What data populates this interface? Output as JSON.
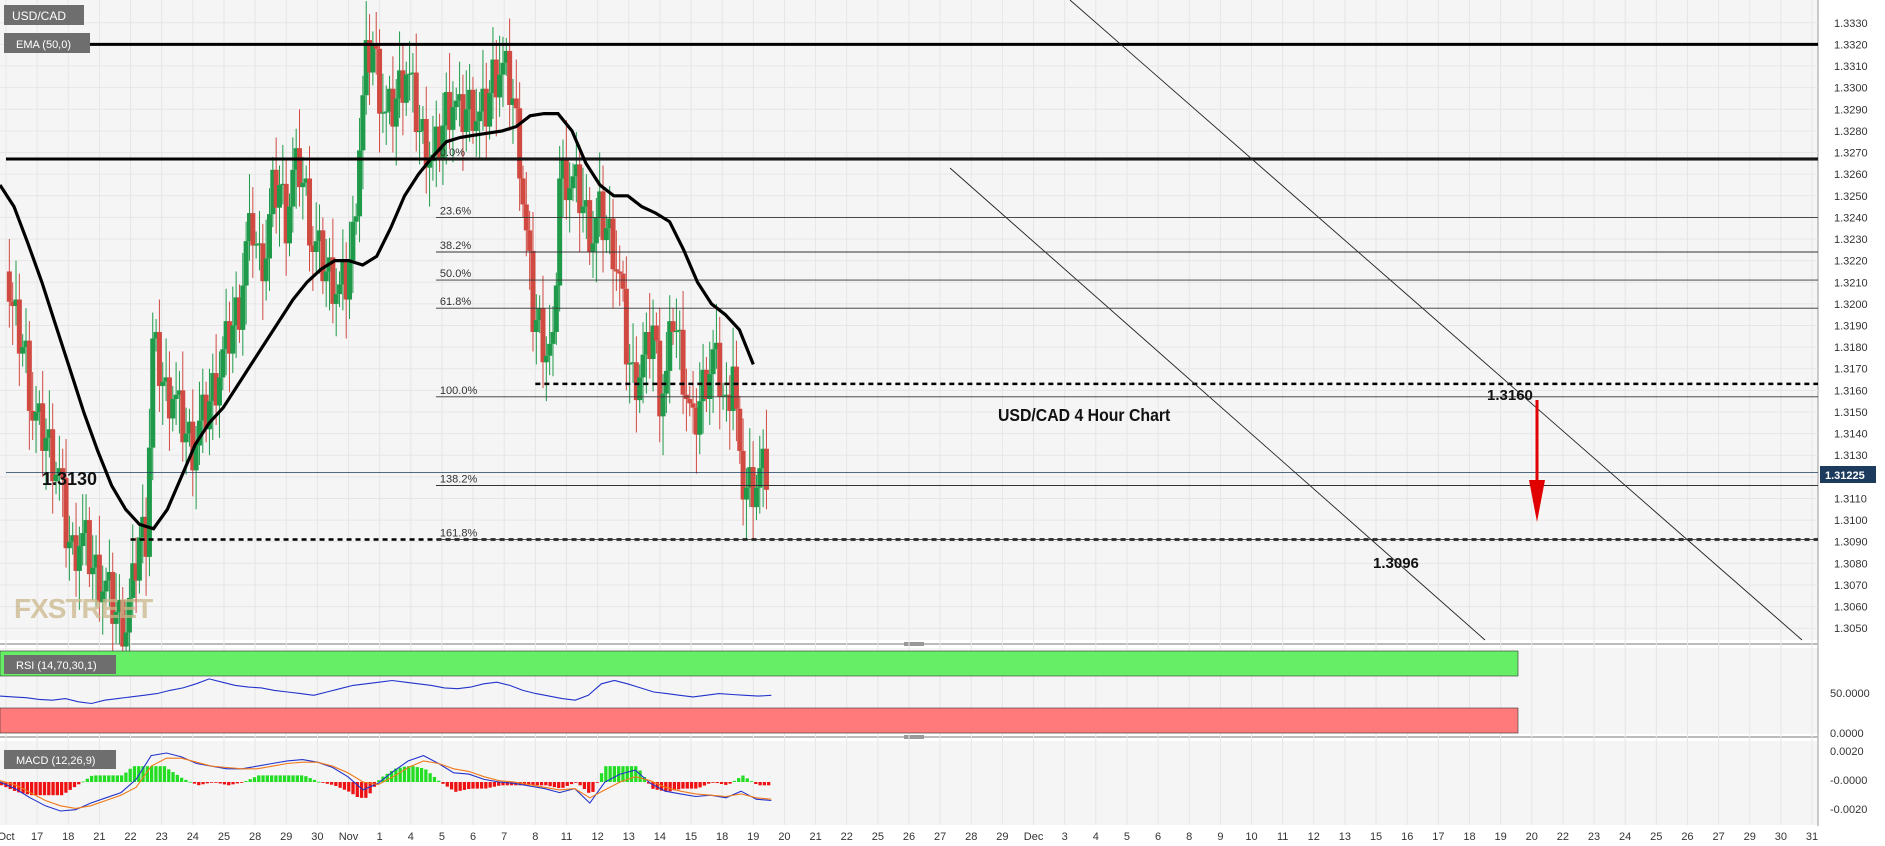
{
  "app": {
    "symbol": "USD/CAD",
    "watermark": "FXSTREET",
    "colors": {
      "up": "#1e9a4a",
      "down": "#d04a42",
      "ema": "#000000",
      "rsi": "#2233cc",
      "macd_line": "#2233cc",
      "signal_line": "#f07a1a",
      "hist_up": "#22dd22",
      "hist_down": "#ee1111",
      "arrow": "#e00000",
      "price_tag": "#1d3b5c"
    }
  },
  "chart_data": [
    {
      "type": "candlestick",
      "panel": "price",
      "symbol": "USD/CAD",
      "title": "USD/CAD  4 Hour Chart",
      "indicator_label": "EMA (50,0)",
      "ylim": [
        1.3045,
        1.3335
      ],
      "y_ticks": [
        "1.3050",
        "1.3060",
        "1.3070",
        "1.3080",
        "1.3090",
        "1.3100",
        "1.3110",
        "1.3120",
        "1.3130",
        "1.3140",
        "1.3150",
        "1.3160",
        "1.3170",
        "1.3180",
        "1.3190",
        "1.3200",
        "1.3210",
        "1.3220",
        "1.3230",
        "1.3240",
        "1.3250",
        "1.3260",
        "1.3270",
        "1.3280",
        "1.3290",
        "1.3300",
        "1.3310",
        "1.3320",
        "1.3330"
      ],
      "x_ticks": [
        "Oct",
        "17",
        "18",
        "21",
        "22",
        "23",
        "24",
        "25",
        "28",
        "29",
        "30",
        "Nov",
        "1",
        "4",
        "5",
        "6",
        "7",
        "8",
        "11",
        "12",
        "13",
        "14",
        "15",
        "18",
        "19",
        "20",
        "21",
        "22",
        "25",
        "26",
        "27",
        "28",
        "29",
        "Dec",
        "3",
        "4",
        "5",
        "6",
        "8",
        "9",
        "10",
        "11",
        "12",
        "13",
        "15",
        "16",
        "17",
        "18",
        "19",
        "20",
        "22",
        "23",
        "24",
        "25",
        "26",
        "27",
        "29",
        "30",
        "31"
      ],
      "close_path": [
        1.3215,
        1.3195,
        1.3185,
        1.3175,
        1.315,
        1.3142,
        1.3138,
        1.313,
        1.312,
        1.3095,
        1.3085,
        1.3092,
        1.3088,
        1.3078,
        1.3074,
        1.3068,
        1.306,
        1.3055,
        1.3052,
        1.3068,
        1.3092,
        1.3095,
        1.318,
        1.317,
        1.3158,
        1.316,
        1.3148,
        1.314,
        1.3135,
        1.3142,
        1.315,
        1.316,
        1.317,
        1.318,
        1.319,
        1.32,
        1.3225,
        1.3235,
        1.322,
        1.3225,
        1.325,
        1.3255,
        1.324,
        1.3258,
        1.3262,
        1.325,
        1.3228,
        1.3222,
        1.3215,
        1.3212,
        1.3205,
        1.321,
        1.323,
        1.3275,
        1.331,
        1.332,
        1.33,
        1.3285,
        1.329,
        1.33,
        1.331,
        1.3295,
        1.328,
        1.3275,
        1.3265,
        1.3275,
        1.329,
        1.3295,
        1.3285,
        1.329,
        1.3292,
        1.3285,
        1.329,
        1.3305,
        1.331,
        1.3305,
        1.3295,
        1.327,
        1.323,
        1.3195,
        1.319,
        1.318,
        1.3175,
        1.3258,
        1.326,
        1.3255,
        1.325,
        1.324,
        1.3232,
        1.324,
        1.3235,
        1.3228,
        1.321,
        1.318,
        1.3165,
        1.317,
        1.3175,
        1.319,
        1.316,
        1.3165,
        1.3195,
        1.318,
        1.316,
        1.314,
        1.3155,
        1.3168,
        1.3175,
        1.3165,
        1.315,
        1.3175,
        1.312,
        1.3115,
        1.3118,
        1.312,
        1.3122
      ],
      "ema_path": [
        1.3255,
        1.3245,
        1.3228,
        1.321,
        1.319,
        1.317,
        1.315,
        1.3132,
        1.3116,
        1.3105,
        1.3098,
        1.3096,
        1.3105,
        1.312,
        1.3135,
        1.3145,
        1.3152,
        1.3162,
        1.3172,
        1.3182,
        1.3192,
        1.3202,
        1.321,
        1.3216,
        1.322,
        1.322,
        1.3218,
        1.3222,
        1.3235,
        1.325,
        1.326,
        1.3268,
        1.3275,
        1.3277,
        1.3278,
        1.3279,
        1.328,
        1.3282,
        1.3287,
        1.3288,
        1.3288,
        1.328,
        1.3265,
        1.3255,
        1.325,
        1.325,
        1.3245,
        1.3242,
        1.3238,
        1.3225,
        1.321,
        1.32,
        1.3195,
        1.3188,
        1.3172
      ],
      "horizontal_levels": [
        {
          "price": 1.332,
          "style": "solid-thick",
          "from_date": "Oct"
        },
        {
          "price": 1.3267,
          "style": "solid-thick",
          "from_date": "Oct"
        },
        {
          "price": 1.3163,
          "style": "dashed",
          "from_date": "8"
        },
        {
          "price": 1.3091,
          "style": "dashed",
          "from_date": "22"
        },
        {
          "price": 1.3122,
          "style": "thin",
          "from_date": "Oct"
        }
      ],
      "fibonacci": [
        {
          "label": "0.0%",
          "price": 1.3267
        },
        {
          "label": "23.6%",
          "price": 1.324
        },
        {
          "label": "38.2%",
          "price": 1.3224
        },
        {
          "label": "50.0%",
          "price": 1.3211
        },
        {
          "label": "61.8%",
          "price": 1.3198
        },
        {
          "label": "100.0%",
          "price": 1.3157
        },
        {
          "label": "138.2%",
          "price": 1.3116
        },
        {
          "label": "161.8%",
          "price": 1.3091
        }
      ],
      "annotations": [
        {
          "text": "1.3130",
          "price": 1.313
        },
        {
          "text": "1.3160",
          "price": 1.316
        },
        {
          "text": "1.3096",
          "price": 1.3096
        }
      ],
      "current_price": "1.31225"
    },
    {
      "type": "line",
      "panel": "rsi",
      "label": "RSI (14,70,30,1)",
      "ylim": [
        0,
        100
      ],
      "y_ticks": [
        "50.0000",
        "0.0000"
      ],
      "bands": {
        "overbought": 70,
        "oversold": 30
      },
      "series": [
        {
          "values": [
            45,
            44,
            43,
            41,
            40,
            42,
            38,
            36,
            40,
            42,
            44,
            46,
            48,
            52,
            55,
            60,
            66,
            62,
            58,
            56,
            55,
            52,
            50,
            48,
            46,
            50,
            54,
            58,
            60,
            62,
            64,
            62,
            60,
            58,
            55,
            54,
            56,
            60,
            62,
            58,
            52,
            48,
            45,
            42,
            40,
            46,
            60,
            64,
            60,
            55,
            50,
            48,
            46,
            44,
            46,
            48,
            47,
            46,
            45,
            46
          ]
        }
      ]
    },
    {
      "type": "line",
      "panel": "macd",
      "label": "MACD (12,26,9)",
      "ylim": [
        -0.0025,
        0.0025
      ],
      "y_ticks": [
        "0.0020",
        "-0.0000",
        "-0.0020"
      ],
      "series": [
        {
          "values": [
            0.0,
            -0.0005,
            -0.0012,
            -0.0018,
            -0.0022,
            -0.0021,
            -0.0016,
            -0.0012,
            -0.0008,
            0.0002,
            0.002,
            0.0022,
            0.0019,
            0.0014,
            0.0012,
            0.001,
            0.001,
            0.0012,
            0.0014,
            0.0016,
            0.0017,
            0.0015,
            0.0011,
            0.0004,
            -0.0006,
            -0.0001,
            0.0008,
            0.0016,
            0.002,
            0.0014,
            0.0007,
            0.0006,
            0.0002,
            0.0,
            -0.0001,
            -0.0003,
            -0.0005,
            -0.0008,
            -0.0005,
            -0.0016,
            0.0,
            0.0006,
            0.0009,
            -0.0001,
            -0.0007,
            -0.0009,
            -0.0011,
            -0.001,
            -0.0012,
            -0.0007,
            -0.0013,
            -0.0014
          ]
        },
        {
          "values": [
            0.0001,
            -0.0002,
            -0.0008,
            -0.0014,
            -0.0018,
            -0.002,
            -0.0018,
            -0.0014,
            -0.001,
            -0.0004,
            0.0012,
            0.0018,
            0.0018,
            0.0015,
            0.0012,
            0.0011,
            0.001,
            0.001,
            0.0012,
            0.0014,
            0.0015,
            0.0015,
            0.0012,
            0.0007,
            0.0,
            -0.0002,
            0.0004,
            0.0011,
            0.0016,
            0.0014,
            0.001,
            0.0008,
            0.0004,
            0.0001,
            0.0,
            -0.0002,
            -0.0004,
            -0.0006,
            -0.0005,
            -0.0012,
            -0.0006,
            0.0,
            0.0004,
            0.0001,
            -0.0004,
            -0.0007,
            -0.0009,
            -0.001,
            -0.0011,
            -0.0009,
            -0.0012,
            -0.0013
          ]
        }
      ]
    }
  ]
}
